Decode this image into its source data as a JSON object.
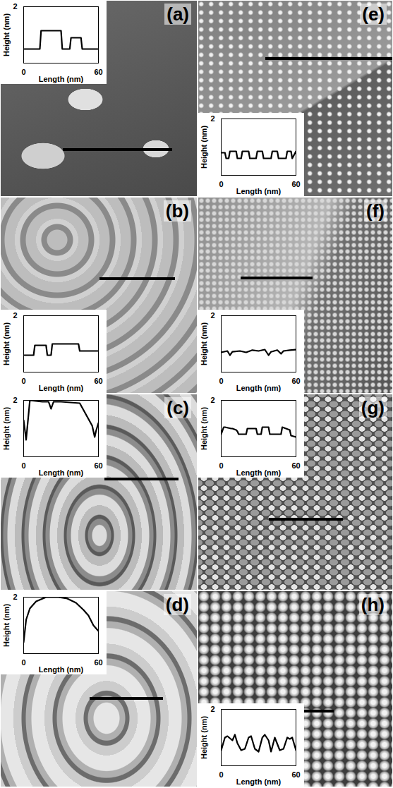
{
  "chart_data": [
    {
      "type": "line",
      "title": "(a)",
      "x_label": "Length (nm)",
      "y_label": "Height (nm)",
      "xlim": [
        0,
        60
      ],
      "ylim": [
        0,
        2
      ],
      "xticks": [
        0,
        60
      ],
      "yticks": [
        2
      ],
      "color": "#000000",
      "x": [
        0,
        13,
        14,
        30,
        31,
        37,
        38,
        46,
        47,
        60
      ],
      "values": [
        0.5,
        0.5,
        1.15,
        1.15,
        0.5,
        0.5,
        0.9,
        0.9,
        0.5,
        0.5
      ]
    },
    {
      "type": "line",
      "title": "(b)",
      "x_label": "Length (nm)",
      "y_label": "Height (nm)",
      "xlim": [
        0,
        60
      ],
      "ylim": [
        0,
        2
      ],
      "xticks": [
        0,
        60
      ],
      "yticks": [
        2
      ],
      "color": "#000000",
      "x": [
        0,
        8,
        9,
        18,
        19,
        22,
        23,
        44,
        45,
        60
      ],
      "values": [
        0.6,
        0.6,
        0.95,
        0.95,
        0.6,
        0.6,
        1.0,
        1.0,
        0.75,
        0.75
      ]
    },
    {
      "type": "line",
      "title": "(c)",
      "x_label": "Length (nm)",
      "y_label": "Height (nm)",
      "xlim": [
        0,
        60
      ],
      "ylim": [
        0,
        2
      ],
      "xticks": [
        0,
        60
      ],
      "yticks": [
        2
      ],
      "color": "#000000",
      "x": [
        0,
        2,
        5,
        15,
        20,
        22,
        24,
        30,
        45,
        50,
        55,
        57,
        58,
        60
      ],
      "values": [
        1.3,
        0.6,
        2.0,
        1.95,
        1.95,
        1.7,
        1.95,
        1.95,
        1.9,
        1.5,
        1.1,
        0.7,
        0.9,
        1.2
      ]
    },
    {
      "type": "line",
      "title": "(d)",
      "x_label": "Length (nm)",
      "y_label": "Height (nm)",
      "xlim": [
        0,
        60
      ],
      "ylim": [
        0,
        2
      ],
      "xticks": [
        0,
        60
      ],
      "yticks": [
        2
      ],
      "color": "#000000",
      "x": [
        0,
        2,
        5,
        10,
        18,
        28,
        35,
        42,
        48,
        52,
        56,
        60
      ],
      "values": [
        0.4,
        1.2,
        1.6,
        1.85,
        2.0,
        2.0,
        1.95,
        1.8,
        1.55,
        1.35,
        1.0,
        0.8
      ]
    },
    {
      "type": "line",
      "title": "(e)",
      "x_label": "Length (nm)",
      "y_label": "Height (nm)",
      "xlim": [
        0,
        60
      ],
      "ylim": [
        0,
        2
      ],
      "xticks": [
        0,
        60
      ],
      "yticks": [
        2
      ],
      "color": "#000000",
      "x": [
        0,
        3,
        4,
        6,
        7,
        12,
        13,
        16,
        17,
        22,
        23,
        28,
        29,
        33,
        34,
        40,
        41,
        45,
        46,
        52,
        53,
        56,
        57,
        60
      ],
      "values": [
        0.8,
        0.8,
        0.6,
        0.6,
        0.85,
        0.85,
        0.6,
        0.6,
        0.85,
        0.85,
        0.6,
        0.6,
        0.85,
        0.85,
        0.6,
        0.6,
        0.85,
        0.85,
        0.6,
        0.6,
        0.85,
        0.85,
        0.6,
        0.85
      ]
    },
    {
      "type": "line",
      "title": "(f)",
      "x_label": "Length (nm)",
      "y_label": "Height (nm)",
      "xlim": [
        0,
        60
      ],
      "ylim": [
        0,
        2
      ],
      "xticks": [
        0,
        60
      ],
      "yticks": [
        2
      ],
      "color": "#000000",
      "x": [
        0,
        5,
        7,
        9,
        15,
        20,
        25,
        30,
        35,
        38,
        40,
        45,
        48,
        50,
        55,
        60
      ],
      "values": [
        0.7,
        0.75,
        0.6,
        0.72,
        0.75,
        0.7,
        0.78,
        0.75,
        0.8,
        0.6,
        0.72,
        0.78,
        0.65,
        0.75,
        0.78,
        0.8
      ]
    },
    {
      "type": "line",
      "title": "(g)",
      "x_label": "Length (nm)",
      "y_label": "Height (nm)",
      "xlim": [
        0,
        60
      ],
      "ylim": [
        0,
        2
      ],
      "xticks": [
        0,
        60
      ],
      "yticks": [
        2
      ],
      "color": "#000000",
      "x": [
        0,
        2,
        3,
        8,
        9,
        12,
        13,
        14,
        20,
        21,
        28,
        29,
        32,
        33,
        38,
        39,
        48,
        49,
        55,
        56,
        60
      ],
      "values": [
        0.8,
        1.05,
        1.05,
        1.0,
        1.0,
        0.95,
        0.9,
        0.8,
        0.8,
        1.0,
        1.0,
        0.8,
        0.8,
        1.05,
        1.05,
        0.8,
        0.8,
        1.05,
        0.95,
        0.75,
        0.7
      ]
    },
    {
      "type": "line",
      "title": "(h)",
      "x_label": "Length (nm)",
      "y_label": "Height (nm)",
      "xlim": [
        0,
        60
      ],
      "ylim": [
        0,
        2
      ],
      "xticks": [
        0,
        60
      ],
      "yticks": [
        2
      ],
      "color": "#000000",
      "x": [
        0,
        3,
        5,
        9,
        11,
        13,
        16,
        19,
        22,
        24,
        27,
        30,
        33,
        35,
        38,
        40,
        43,
        47,
        50,
        53,
        55,
        57,
        60
      ],
      "values": [
        0.55,
        1.0,
        1.05,
        0.9,
        1.1,
        0.8,
        0.55,
        0.6,
        1.0,
        1.05,
        0.6,
        0.5,
        1.0,
        1.1,
        0.9,
        0.5,
        1.0,
        0.55,
        0.6,
        1.0,
        0.95,
        1.0,
        0.55
      ]
    }
  ]
}
